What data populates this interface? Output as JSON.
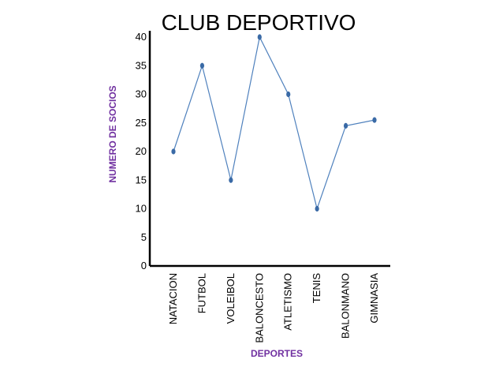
{
  "colors": {
    "line": "#4f81bd",
    "marker": "#3a6aa6",
    "axis": "#000000",
    "axis_title": "#7030a0"
  },
  "chart_data": {
    "type": "line",
    "title": "CLUB DEPORTIVO",
    "xlabel": "DEPORTES",
    "ylabel": "NUMERO DE SOCIOS",
    "categories": [
      "NATACION",
      "FUTBOL",
      "VOLEIBOL",
      "BALONCESTO",
      "ATLETISMO",
      "TENIS",
      "BALONMANO",
      "GIMNASIA"
    ],
    "series": [
      {
        "values": [
          20,
          35,
          15,
          40,
          30,
          10,
          24.5,
          25.5
        ]
      }
    ],
    "ylim": [
      0,
      40
    ],
    "yticks": [
      0,
      5,
      10,
      15,
      20,
      25,
      30,
      35,
      40
    ],
    "grid": false,
    "legend": "none"
  }
}
